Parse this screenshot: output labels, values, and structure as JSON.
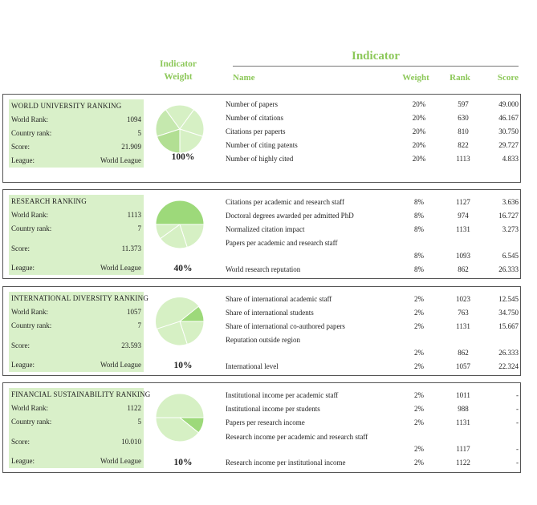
{
  "header": {
    "weight_line1": "Indicator",
    "weight_line2": "Weight",
    "indicator_title": "Indicator",
    "col_name": "Name",
    "col_weight": "Weight",
    "col_rank": "Rank",
    "col_score": "Score"
  },
  "colors": {
    "accent": "#8dc85a",
    "summary_bg": "#d9f0c9",
    "pie_light": "#d6f0c4",
    "pie_dark": "#9dd97a"
  },
  "sections": [
    {
      "title": "WORLD UNIVERSITY RANKING",
      "world_rank_label": "World Rank:",
      "world_rank": "1094",
      "country_rank_label": "Country rank:",
      "country_rank": "5",
      "score_label": "Score:",
      "score": "21.909",
      "league_label": "League:",
      "league": "World League",
      "weight_pct": "100%",
      "indicators": [
        {
          "name": "Number of papers",
          "weight": "20%",
          "rank": "597",
          "score": "49.000"
        },
        {
          "name": "Number of citations",
          "weight": "20%",
          "rank": "630",
          "score": "46.167"
        },
        {
          "name": "Citations per paperts",
          "weight": "20%",
          "rank": "810",
          "score": "30.750"
        },
        {
          "name": "Number of citing patents",
          "weight": "20%",
          "rank": "822",
          "score": "29.727"
        },
        {
          "name": "Number of highly cited",
          "weight": "20%",
          "rank": "1113",
          "score": "4.833"
        }
      ]
    },
    {
      "title": "RESEARCH RANKING",
      "world_rank_label": "World Rank:",
      "world_rank": "1113",
      "country_rank_label": "Country rank:",
      "country_rank": "7",
      "score_label": "Score:",
      "score": "11.373",
      "league_label": "League:",
      "league": "World League",
      "weight_pct": "40%",
      "indicators": [
        {
          "name": "Citations per academic and research staff",
          "weight": "8%",
          "rank": "1127",
          "score": "3.636"
        },
        {
          "name": "Doctoral degrees awarded per admitted PhD",
          "weight": "8%",
          "rank": "974",
          "score": "16.727"
        },
        {
          "name": "Normalized citation impact",
          "weight": "8%",
          "rank": "1131",
          "score": "3.273"
        },
        {
          "name": "Papers per academic and research staff",
          "weight": "8%",
          "rank": "1093",
          "score": "6.545"
        },
        {
          "name": "World research reputation",
          "weight": "8%",
          "rank": "862",
          "score": "26.333"
        }
      ]
    },
    {
      "title": "INTERNATIONAL DIVERSITY RANKING",
      "world_rank_label": "World Rank:",
      "world_rank": "1057",
      "country_rank_label": "Country rank:",
      "country_rank": "7",
      "score_label": "Score:",
      "score": "23.593",
      "league_label": "League:",
      "league": "World League",
      "weight_pct": "10%",
      "indicators": [
        {
          "name": "Share of international academic staff",
          "weight": "2%",
          "rank": "1023",
          "score": "12.545"
        },
        {
          "name": "Share of international students",
          "weight": "2%",
          "rank": "763",
          "score": "34.750"
        },
        {
          "name": "Share of international co-authored papers",
          "weight": "2%",
          "rank": "1131",
          "score": "15.667"
        },
        {
          "name": "Reputation outside region",
          "weight": "2%",
          "rank": "862",
          "score": "26.333"
        },
        {
          "name": "International level",
          "weight": "2%",
          "rank": "1057",
          "score": "22.324"
        }
      ]
    },
    {
      "title": "FINANCIAL SUSTAINABILITY RANKING",
      "world_rank_label": "World Rank:",
      "world_rank": "1122",
      "country_rank_label": "Country rank:",
      "country_rank": "5",
      "score_label": "Score:",
      "score": "10.010",
      "league_label": "League:",
      "league": "World League",
      "weight_pct": "10%",
      "indicators": [
        {
          "name": "Institutional income per academic staff",
          "weight": "2%",
          "rank": "1011",
          "score": "-"
        },
        {
          "name": "Institutional income per students",
          "weight": "2%",
          "rank": "988",
          "score": "-"
        },
        {
          "name": "Papers per research income",
          "weight": "2%",
          "rank": "1131",
          "score": "-"
        },
        {
          "name": "Research income per academic and research staff",
          "weight": "2%",
          "rank": "1117",
          "score": "-"
        },
        {
          "name": "Research income per institutional income",
          "weight": "2%",
          "rank": "1122",
          "score": "-"
        }
      ]
    }
  ]
}
